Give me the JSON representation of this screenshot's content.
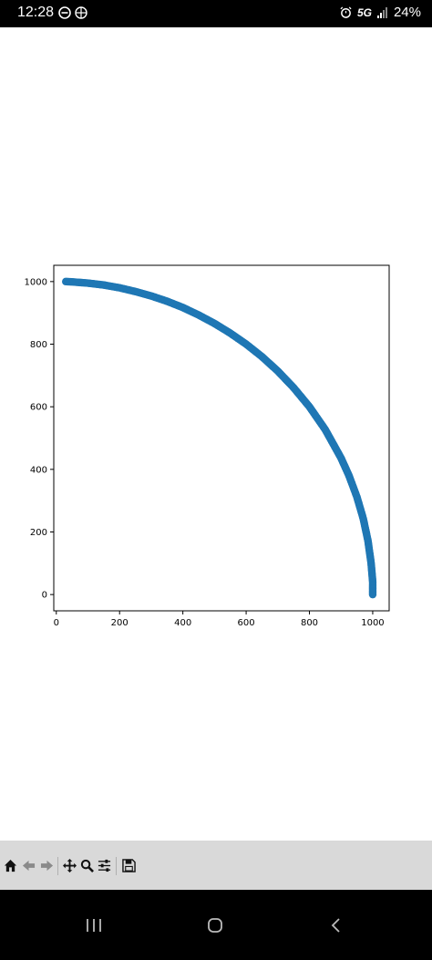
{
  "status_bar": {
    "time": "12:28",
    "network": "5G",
    "battery": "24%",
    "icons": [
      "do-not-disturb-icon",
      "vpn-icon",
      "alarm-icon",
      "signal-icon"
    ]
  },
  "toolbar": {
    "buttons": [
      "home-icon",
      "back-icon",
      "forward-icon",
      "pan-icon",
      "zoom-icon",
      "configure-subplots-icon",
      "save-icon"
    ]
  },
  "nav_bar": {
    "buttons": [
      "recents-icon",
      "home-circle-icon",
      "back-chevron-icon"
    ]
  },
  "chart_data": {
    "type": "scatter",
    "title": "",
    "xlabel": "",
    "ylabel": "",
    "xlim": [
      -8,
      1052
    ],
    "ylim": [
      -52,
      1052
    ],
    "xticks": [
      0,
      200,
      400,
      600,
      800,
      1000
    ],
    "yticks": [
      0,
      200,
      400,
      600,
      800,
      1000
    ],
    "grid": false,
    "color": "#1f77b4",
    "series": [
      {
        "x": [
          30,
          50,
          100,
          150,
          200,
          250,
          300,
          350,
          400,
          450,
          500,
          550,
          600,
          650,
          700,
          750,
          800,
          850,
          900,
          925,
          950,
          970,
          985,
          995,
          1000,
          1000,
          1000
        ],
        "y": [
          1000,
          999,
          995,
          989,
          980,
          968,
          954,
          937,
          917,
          893,
          866,
          835,
          800,
          760,
          714,
          661,
          600,
          527,
          436,
          380,
          312,
          243,
          172,
          100,
          40,
          15,
          0
        ]
      }
    ]
  }
}
